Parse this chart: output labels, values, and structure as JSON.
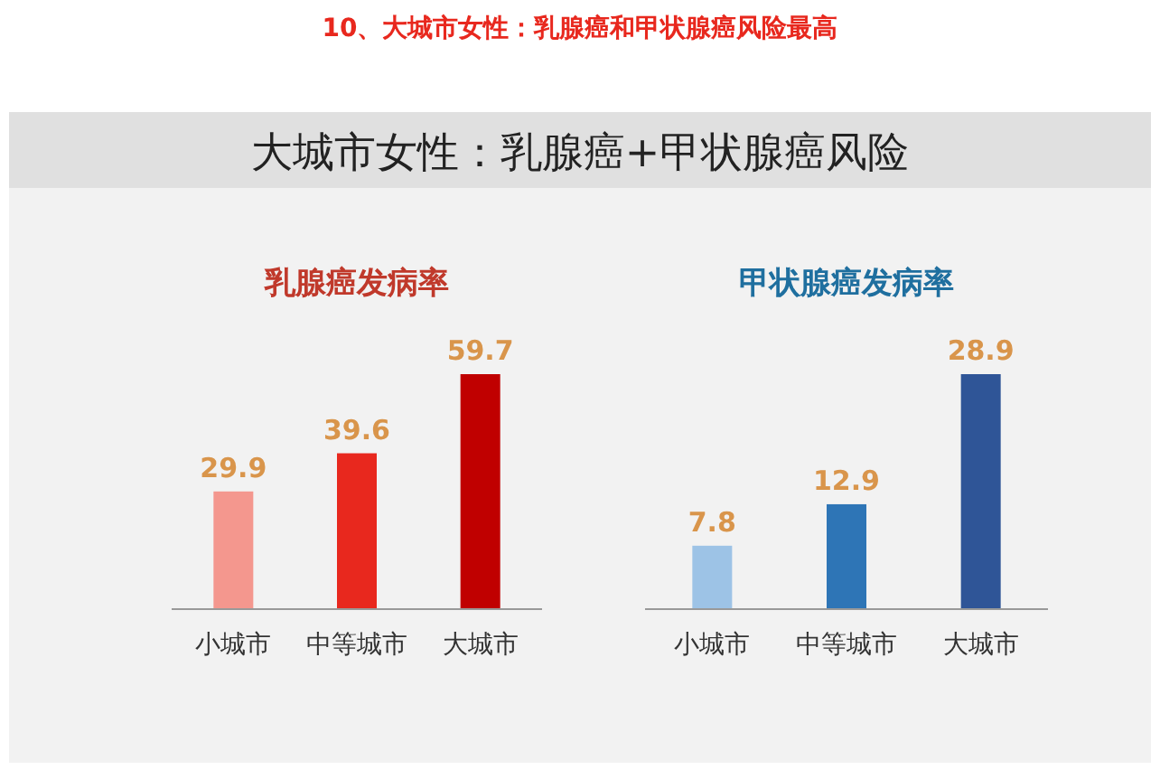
{
  "chart_data": [
    {
      "type": "other",
      "title": "10、大城市女性：乳腺癌和甲状腺癌风险最高",
      "subtitle": "大城市女性：乳腺癌+甲状腺癌风险"
    },
    {
      "type": "bar",
      "title": "乳腺癌发病率",
      "categories": [
        "小城市",
        "中等城市",
        "大城市"
      ],
      "values": [
        29.9,
        39.6,
        59.7
      ],
      "colors": [
        "#f4978e",
        "#e8281e",
        "#c00000"
      ],
      "data_labels": true
    },
    {
      "type": "bar",
      "title": "甲状腺癌发病率",
      "categories": [
        "小城市",
        "中等城市",
        "大城市"
      ],
      "values": [
        7.8,
        12.9,
        28.9
      ],
      "colors": [
        "#9dc3e6",
        "#2e75b6",
        "#2f5597"
      ],
      "data_labels": true
    }
  ]
}
